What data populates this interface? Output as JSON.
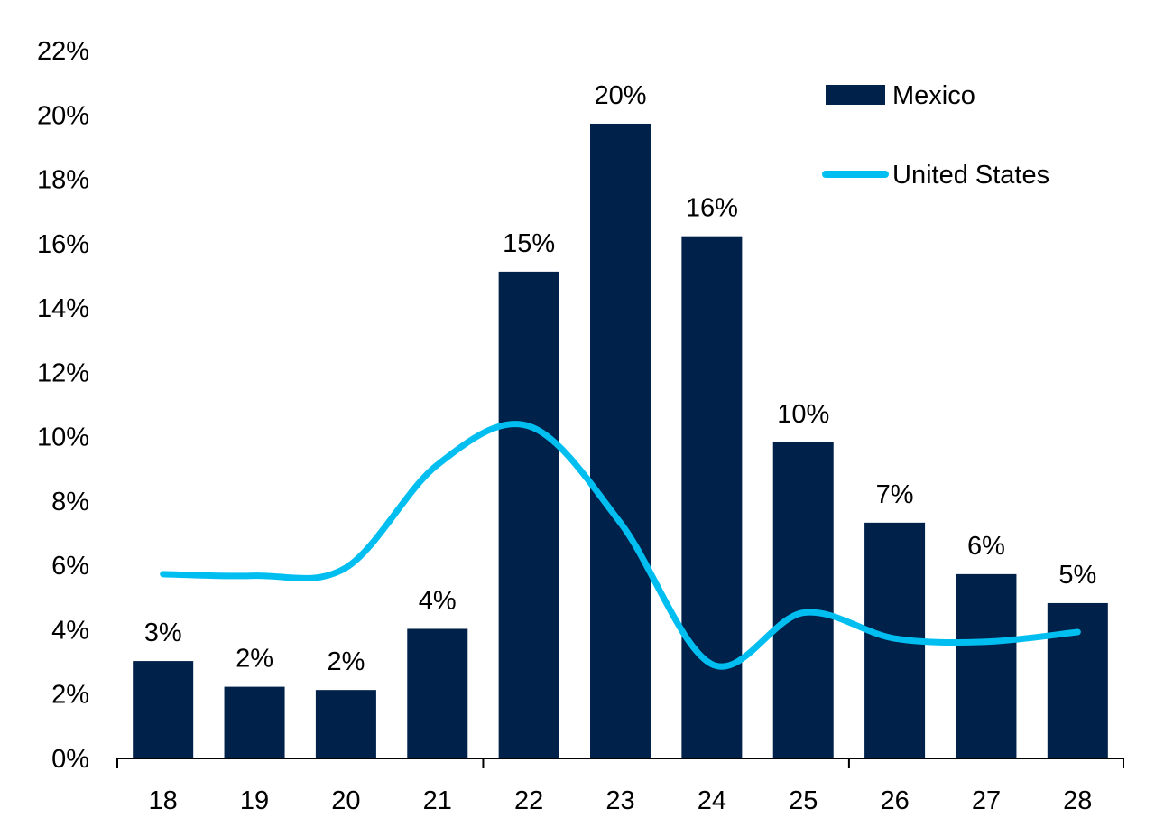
{
  "chart_data": {
    "type": "bar",
    "categories": [
      "18",
      "19",
      "20",
      "21",
      "22",
      "23",
      "24",
      "25",
      "26",
      "27",
      "28"
    ],
    "series": [
      {
        "name": "Mexico",
        "type": "bar",
        "color": "#00214a",
        "values": [
          3.0,
          2.2,
          2.1,
          4.0,
          15.1,
          19.7,
          16.2,
          9.8,
          7.3,
          5.7,
          4.8
        ],
        "data_labels": [
          "3%",
          "2%",
          "2%",
          "4%",
          "15%",
          "20%",
          "16%",
          "10%",
          "7%",
          "6%",
          "5%"
        ]
      },
      {
        "name": "United States",
        "type": "line",
        "color": "#00bff0",
        "values": [
          5.7,
          5.65,
          5.9,
          9.1,
          10.3,
          7.3,
          2.9,
          4.5,
          3.7,
          3.6,
          3.9
        ]
      }
    ],
    "ylim": [
      0,
      22
    ],
    "y_ticks": [
      "0%",
      "2%",
      "4%",
      "6%",
      "8%",
      "10%",
      "12%",
      "14%",
      "16%",
      "18%",
      "20%",
      "22%"
    ],
    "y_tick_values": [
      0,
      2,
      4,
      6,
      8,
      10,
      12,
      14,
      16,
      18,
      20,
      22
    ],
    "legend_position": "top-right",
    "grid": false
  }
}
